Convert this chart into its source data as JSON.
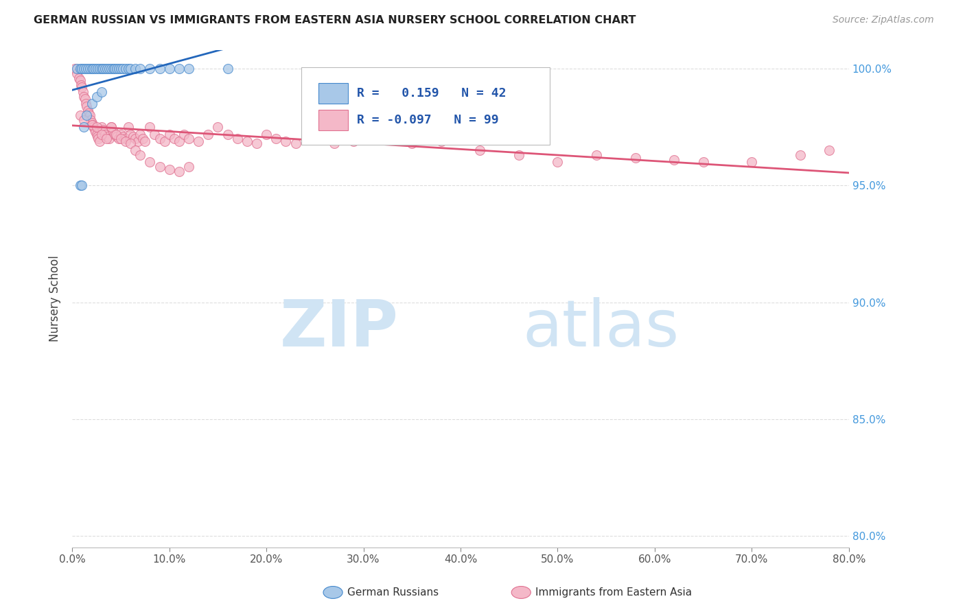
{
  "title": "GERMAN RUSSIAN VS IMMIGRANTS FROM EASTERN ASIA NURSERY SCHOOL CORRELATION CHART",
  "source": "Source: ZipAtlas.com",
  "ylabel_label": "Nursery School",
  "xmin": 0.0,
  "xmax": 0.8,
  "ymin": 0.795,
  "ymax": 1.008,
  "blue_R": 0.159,
  "blue_N": 42,
  "pink_R": -0.097,
  "pink_N": 99,
  "blue_color": "#a8c8e8",
  "pink_color": "#f4b8c8",
  "blue_edge_color": "#4488cc",
  "pink_edge_color": "#e07090",
  "blue_line_color": "#2266bb",
  "pink_line_color": "#dd5577",
  "watermark_zip": "ZIP",
  "watermark_atlas": "atlas",
  "watermark_color": "#d0e4f4",
  "legend_label_blue": "German Russians",
  "legend_label_pink": "Immigrants from Eastern Asia",
  "blue_scatter_x": [
    0.005,
    0.008,
    0.01,
    0.012,
    0.014,
    0.016,
    0.018,
    0.02,
    0.022,
    0.024,
    0.026,
    0.028,
    0.03,
    0.032,
    0.034,
    0.036,
    0.038,
    0.04,
    0.042,
    0.044,
    0.046,
    0.048,
    0.05,
    0.052,
    0.055,
    0.058,
    0.06,
    0.065,
    0.07,
    0.08,
    0.09,
    0.1,
    0.11,
    0.12,
    0.16,
    0.008,
    0.01,
    0.012,
    0.015,
    0.02,
    0.025,
    0.03
  ],
  "blue_scatter_y": [
    1.0,
    1.0,
    1.0,
    1.0,
    1.0,
    1.0,
    1.0,
    1.0,
    1.0,
    1.0,
    1.0,
    1.0,
    1.0,
    1.0,
    1.0,
    1.0,
    1.0,
    1.0,
    1.0,
    1.0,
    1.0,
    1.0,
    1.0,
    1.0,
    1.0,
    1.0,
    1.0,
    1.0,
    1.0,
    1.0,
    1.0,
    1.0,
    1.0,
    1.0,
    1.0,
    0.95,
    0.95,
    0.975,
    0.98,
    0.985,
    0.988,
    0.99
  ],
  "pink_scatter_x": [
    0.003,
    0.005,
    0.007,
    0.008,
    0.009,
    0.01,
    0.011,
    0.012,
    0.013,
    0.014,
    0.015,
    0.016,
    0.017,
    0.018,
    0.019,
    0.02,
    0.021,
    0.022,
    0.023,
    0.024,
    0.025,
    0.026,
    0.027,
    0.028,
    0.03,
    0.032,
    0.034,
    0.036,
    0.038,
    0.04,
    0.042,
    0.044,
    0.046,
    0.048,
    0.05,
    0.052,
    0.055,
    0.058,
    0.06,
    0.063,
    0.065,
    0.068,
    0.07,
    0.073,
    0.075,
    0.08,
    0.085,
    0.09,
    0.095,
    0.1,
    0.105,
    0.11,
    0.115,
    0.12,
    0.13,
    0.14,
    0.15,
    0.16,
    0.17,
    0.18,
    0.19,
    0.2,
    0.21,
    0.22,
    0.23,
    0.25,
    0.27,
    0.29,
    0.32,
    0.35,
    0.38,
    0.42,
    0.46,
    0.5,
    0.54,
    0.58,
    0.62,
    0.65,
    0.7,
    0.75,
    0.78,
    0.008,
    0.012,
    0.02,
    0.025,
    0.03,
    0.035,
    0.04,
    0.045,
    0.05,
    0.055,
    0.06,
    0.065,
    0.07,
    0.08,
    0.09,
    0.1,
    0.11,
    0.12
  ],
  "pink_scatter_y": [
    1.0,
    0.998,
    0.996,
    0.995,
    0.993,
    0.992,
    0.99,
    0.988,
    0.987,
    0.985,
    0.984,
    0.982,
    0.981,
    0.98,
    0.978,
    0.977,
    0.976,
    0.975,
    0.974,
    0.973,
    0.972,
    0.971,
    0.97,
    0.969,
    0.975,
    0.974,
    0.972,
    0.971,
    0.97,
    0.975,
    0.973,
    0.972,
    0.971,
    0.97,
    0.972,
    0.971,
    0.97,
    0.975,
    0.972,
    0.971,
    0.97,
    0.969,
    0.972,
    0.97,
    0.969,
    0.975,
    0.972,
    0.97,
    0.969,
    0.972,
    0.97,
    0.969,
    0.972,
    0.97,
    0.969,
    0.972,
    0.975,
    0.972,
    0.97,
    0.969,
    0.968,
    0.972,
    0.97,
    0.969,
    0.968,
    0.97,
    0.968,
    0.969,
    0.97,
    0.968,
    0.969,
    0.965,
    0.963,
    0.96,
    0.963,
    0.962,
    0.961,
    0.96,
    0.96,
    0.963,
    0.965,
    0.98,
    0.978,
    0.976,
    0.975,
    0.972,
    0.97,
    0.975,
    0.972,
    0.97,
    0.969,
    0.968,
    0.965,
    0.963,
    0.96,
    0.958,
    0.957,
    0.956,
    0.958
  ],
  "grid_color": "#dddddd",
  "bottom_spine_color": "#bbbbbb",
  "tick_color": "#888888",
  "right_tick_color": "#4499dd"
}
